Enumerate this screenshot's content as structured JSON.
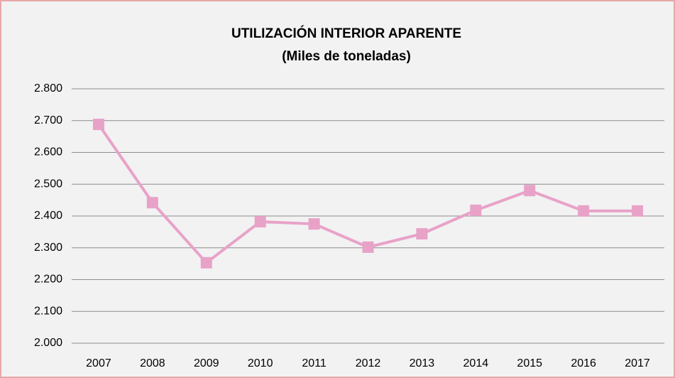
{
  "chart_data": {
    "type": "line",
    "title": "UTILIZACIÓN INTERIOR APARENTE",
    "subtitle": "(Miles de toneladas)",
    "categories": [
      "2007",
      "2008",
      "2009",
      "2010",
      "2011",
      "2012",
      "2013",
      "2014",
      "2015",
      "2016",
      "2017"
    ],
    "series": [
      {
        "name": "Utilización interior aparente",
        "color": "#e8a2c8",
        "values": [
          2688,
          2442,
          2253,
          2382,
          2375,
          2302,
          2344,
          2418,
          2480,
          2416,
          2416
        ]
      }
    ],
    "ylim": [
      2000,
      2800
    ],
    "yticks": [
      {
        "value": 2000,
        "label": "2.000"
      },
      {
        "value": 2100,
        "label": "2.100"
      },
      {
        "value": 2200,
        "label": "2.200"
      },
      {
        "value": 2300,
        "label": "2.300"
      },
      {
        "value": 2400,
        "label": "2.400"
      },
      {
        "value": 2500,
        "label": "2.500"
      },
      {
        "value": 2600,
        "label": "2.600"
      },
      {
        "value": 2700,
        "label": "2.700"
      },
      {
        "value": 2800,
        "label": "2.800"
      }
    ],
    "grid": true
  }
}
